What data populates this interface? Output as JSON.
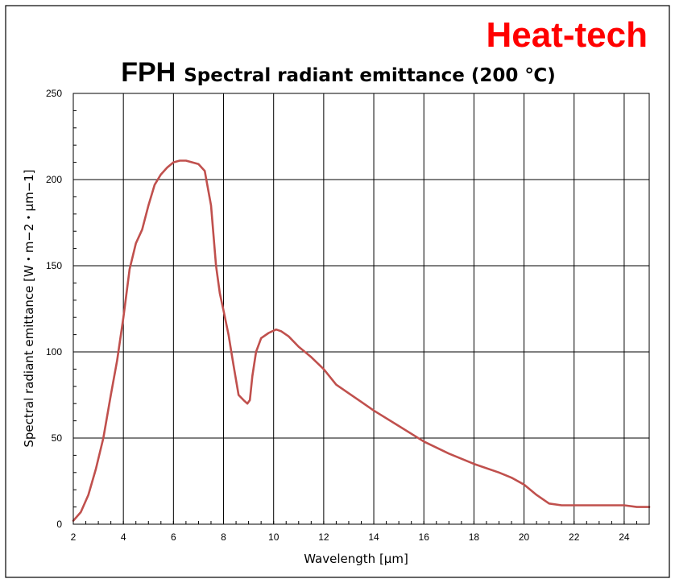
{
  "brand": {
    "text": "Heat-tech",
    "color": "#ff0000"
  },
  "chart_title": {
    "main": "FPH",
    "sub": "Spectral radiant emittance (200 ℃)"
  },
  "colors": {
    "series_line": "#c0504d",
    "grid": "#000000",
    "frame": "#000000",
    "background": "#ffffff"
  },
  "chart_data": {
    "type": "line",
    "title": "FPH Spectral radiant emittance (200 ℃)",
    "xlabel": "Wavelength [μm]",
    "ylabel": "Spectral radiant emittance [W・m−2・μm−1]",
    "xlim": [
      2,
      25
    ],
    "ylim": [
      0,
      250
    ],
    "x_ticks": [
      2,
      4,
      6,
      8,
      10,
      12,
      14,
      16,
      18,
      20,
      22,
      24
    ],
    "x_tick_labels": [
      "2",
      "4",
      "6",
      "8",
      "10",
      "12",
      "14",
      "16",
      "18",
      "20",
      "22",
      "24"
    ],
    "y_ticks": [
      0,
      50,
      100,
      150,
      200,
      250
    ],
    "y_tick_labels": [
      "0",
      "50",
      "100",
      "150",
      "200",
      "250"
    ],
    "grid": true,
    "legend": "none",
    "series": [
      {
        "x": [
          2.0,
          2.3,
          2.6,
          2.9,
          3.2,
          3.5,
          3.75,
          4.0,
          4.25,
          4.5,
          4.75,
          5.0,
          5.25,
          5.5,
          5.75,
          6.0,
          6.25,
          6.5,
          6.75,
          7.0,
          7.25,
          7.5,
          7.7,
          7.85,
          8.0,
          8.2,
          8.4,
          8.6,
          8.8,
          8.95,
          9.05,
          9.15,
          9.3,
          9.5,
          9.8,
          10.1,
          10.3,
          10.6,
          11.0,
          11.5,
          12.0,
          12.5,
          13.0,
          13.5,
          14.0,
          15.0,
          16.0,
          17.0,
          18.0,
          19.0,
          19.5,
          20.0,
          20.5,
          21.0,
          21.5,
          22.0,
          22.5,
          23.0,
          23.5,
          24.0,
          24.5,
          25.0
        ],
        "y": [
          2,
          7,
          17,
          32,
          50,
          75,
          95,
          120,
          148,
          163,
          171,
          185,
          197,
          203,
          207,
          210,
          211,
          211,
          210,
          209,
          205,
          185,
          150,
          134,
          124,
          110,
          92,
          75,
          72,
          70,
          72,
          86,
          100,
          108,
          111,
          113,
          112,
          109,
          103,
          97,
          90,
          81,
          76,
          71,
          66,
          57,
          48,
          41,
          35,
          30,
          27,
          23,
          17,
          12,
          11,
          11,
          11,
          11,
          11,
          11,
          10,
          10
        ]
      }
    ]
  }
}
